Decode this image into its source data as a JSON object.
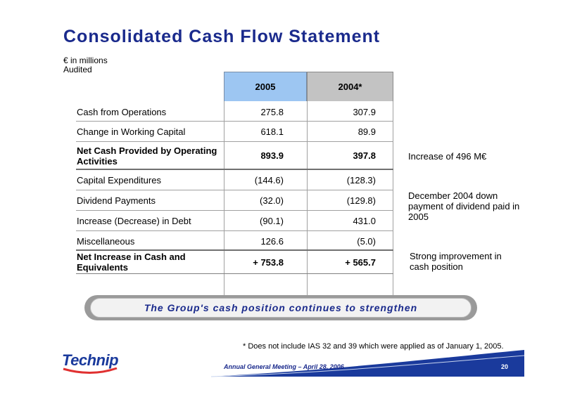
{
  "title": "Consolidated Cash Flow Statement",
  "units": [
    "€ in millions",
    "Audited"
  ],
  "columns": [
    "2005",
    "2004*"
  ],
  "rows": [
    {
      "label": "Cash from Operations",
      "v2005": "275.8",
      "v2004": "307.9"
    },
    {
      "label": "Change in Working Capital",
      "v2005": "618.1",
      "v2004": "89.9"
    },
    {
      "label": "Net Cash Provided by Operating Activities",
      "v2005": "893.9",
      "v2004": "397.8"
    },
    {
      "label": "Capital Expenditures",
      "v2005": "(144.6)",
      "v2004": "(128.3)"
    },
    {
      "label": "Dividend Payments",
      "v2005": "(32.0)",
      "v2004": "(129.8)"
    },
    {
      "label": "Increase (Decrease) in Debt",
      "v2005": "(90.1)",
      "v2004": "431.0"
    },
    {
      "label": "Miscellaneous",
      "v2005": "126.6",
      "v2004": "(5.0)"
    },
    {
      "label": "Net Increase in Cash and Equivalents",
      "v2005": "+ 753.8",
      "v2004": "+ 565.7"
    }
  ],
  "notes": {
    "increase": "Increase of 496 M€",
    "dividend": "December 2004 down payment of dividend paid in 2005",
    "cash": "Strong improvement in cash position"
  },
  "banner": "The Group's cash position continues to strengthen",
  "footnote": "* Does not include IAS 32 and 39 which were applied as of January 1, 2005.",
  "footer": {
    "logo": "Technip",
    "meeting": "Annual General Meeting – April 28, 2006",
    "page": "20"
  },
  "colors": {
    "title": "#1a2a8c",
    "header_2005": "#9dc6f2",
    "header_2004": "#c3c3c3",
    "footer_band": "#1a3a9c"
  }
}
